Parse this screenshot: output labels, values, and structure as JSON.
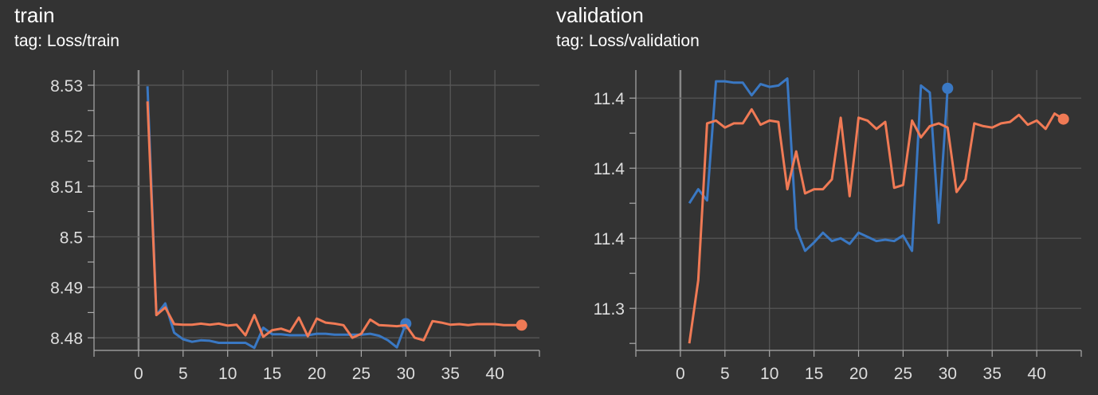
{
  "colors": {
    "background": "#333333",
    "grid": "#5a5a5a",
    "axis": "#aaaaaa",
    "series_blue": "#3a78c3",
    "series_orange": "#f07a55"
  },
  "charts": [
    {
      "title": "train",
      "tag": "tag: Loss/train"
    },
    {
      "title": "validation",
      "tag": "tag: Loss/validation"
    }
  ],
  "chart_data": [
    {
      "type": "line",
      "title": "train",
      "subtitle": "tag: Loss/train",
      "xlabel": "",
      "ylabel": "",
      "xlim": [
        -5,
        45
      ],
      "ylim": [
        8.4775,
        8.533
      ],
      "xticks": [
        0,
        5,
        10,
        15,
        20,
        25,
        30,
        35,
        40
      ],
      "yticks": [
        8.48,
        8.49,
        8.5,
        8.51,
        8.52,
        8.53
      ],
      "ytick_labels": [
        "8.48",
        "8.49",
        "8.5",
        "8.51",
        "8.52",
        "8.53"
      ],
      "grid": true,
      "series": [
        {
          "color": "#3a78c3",
          "x": [
            1,
            2,
            3,
            4,
            5,
            6,
            7,
            8,
            9,
            10,
            11,
            12,
            13,
            14,
            15,
            16,
            17,
            18,
            19,
            20,
            21,
            22,
            23,
            24,
            25,
            26,
            27,
            28,
            29,
            30
          ],
          "values": [
            8.5298,
            8.4845,
            8.4868,
            8.481,
            8.4797,
            8.4792,
            8.4795,
            8.4794,
            8.479,
            8.479,
            8.479,
            8.479,
            8.478,
            8.482,
            8.4807,
            8.4807,
            8.4805,
            8.4805,
            8.4805,
            8.4808,
            8.4808,
            8.4806,
            8.4806,
            8.4806,
            8.4806,
            8.4808,
            8.4804,
            8.4795,
            8.4781,
            8.4828
          ]
        },
        {
          "color": "#f07a55",
          "x": [
            1,
            2,
            3,
            4,
            5,
            6,
            7,
            8,
            9,
            10,
            11,
            12,
            13,
            14,
            15,
            16,
            17,
            18,
            19,
            20,
            21,
            22,
            23,
            24,
            25,
            26,
            27,
            28,
            29,
            30,
            31,
            32,
            33,
            34,
            35,
            36,
            37,
            38,
            39,
            40,
            41,
            42,
            43
          ],
          "values": [
            8.5268,
            8.4845,
            8.486,
            8.4827,
            8.4826,
            8.4826,
            8.4828,
            8.4826,
            8.4828,
            8.4824,
            8.4826,
            8.4805,
            8.4845,
            8.4802,
            8.4815,
            8.4818,
            8.4812,
            8.484,
            8.4803,
            8.4838,
            8.483,
            8.4828,
            8.4825,
            8.48,
            8.4808,
            8.4836,
            8.4825,
            8.4824,
            8.4823,
            8.4825,
            8.48,
            8.4795,
            8.4833,
            8.483,
            8.4826,
            8.4827,
            8.4825,
            8.4827,
            8.4827,
            8.4827,
            8.4825,
            8.4825,
            8.4825
          ]
        }
      ]
    },
    {
      "type": "line",
      "title": "validation",
      "subtitle": "tag: Loss/validation",
      "xlabel": "",
      "ylabel": "",
      "xlim": [
        -5,
        45
      ],
      "ylim": [
        11.27,
        11.47
      ],
      "xticks": [
        0,
        5,
        10,
        15,
        20,
        25,
        30,
        35,
        40
      ],
      "yticks": [
        11.3,
        11.35,
        11.4,
        11.45
      ],
      "ytick_labels": [
        "11.3",
        "11.4",
        "11.4",
        "11.4"
      ],
      "grid": true,
      "series": [
        {
          "color": "#3a78c3",
          "x": [
            1,
            2,
            3,
            4,
            5,
            6,
            7,
            8,
            9,
            10,
            11,
            12,
            13,
            14,
            15,
            16,
            17,
            18,
            19,
            20,
            21,
            22,
            23,
            24,
            25,
            26,
            27,
            28,
            29,
            30
          ],
          "values": [
            11.375,
            11.385,
            11.377,
            11.462,
            11.462,
            11.461,
            11.461,
            11.452,
            11.46,
            11.458,
            11.459,
            11.464,
            11.357,
            11.341,
            11.347,
            11.354,
            11.348,
            11.35,
            11.346,
            11.354,
            11.351,
            11.348,
            11.349,
            11.348,
            11.352,
            11.341,
            11.459,
            11.454,
            11.361,
            11.457
          ]
        },
        {
          "color": "#f07a55",
          "x": [
            1,
            2,
            3,
            4,
            5,
            6,
            7,
            8,
            9,
            10,
            11,
            12,
            13,
            14,
            15,
            16,
            17,
            18,
            19,
            20,
            21,
            22,
            23,
            24,
            25,
            26,
            27,
            28,
            29,
            30,
            31,
            32,
            33,
            34,
            35,
            36,
            37,
            38,
            39,
            40,
            41,
            42,
            43
          ],
          "values": [
            11.275,
            11.32,
            11.432,
            11.434,
            11.429,
            11.432,
            11.432,
            11.442,
            11.431,
            11.434,
            11.433,
            11.385,
            11.412,
            11.382,
            11.385,
            11.385,
            11.392,
            11.436,
            11.38,
            11.436,
            11.434,
            11.428,
            11.433,
            11.386,
            11.388,
            11.434,
            11.422,
            11.43,
            11.432,
            11.429,
            11.383,
            11.392,
            11.432,
            11.43,
            11.429,
            11.432,
            11.433,
            11.438,
            11.431,
            11.434,
            11.428,
            11.439,
            11.435
          ]
        }
      ]
    }
  ]
}
